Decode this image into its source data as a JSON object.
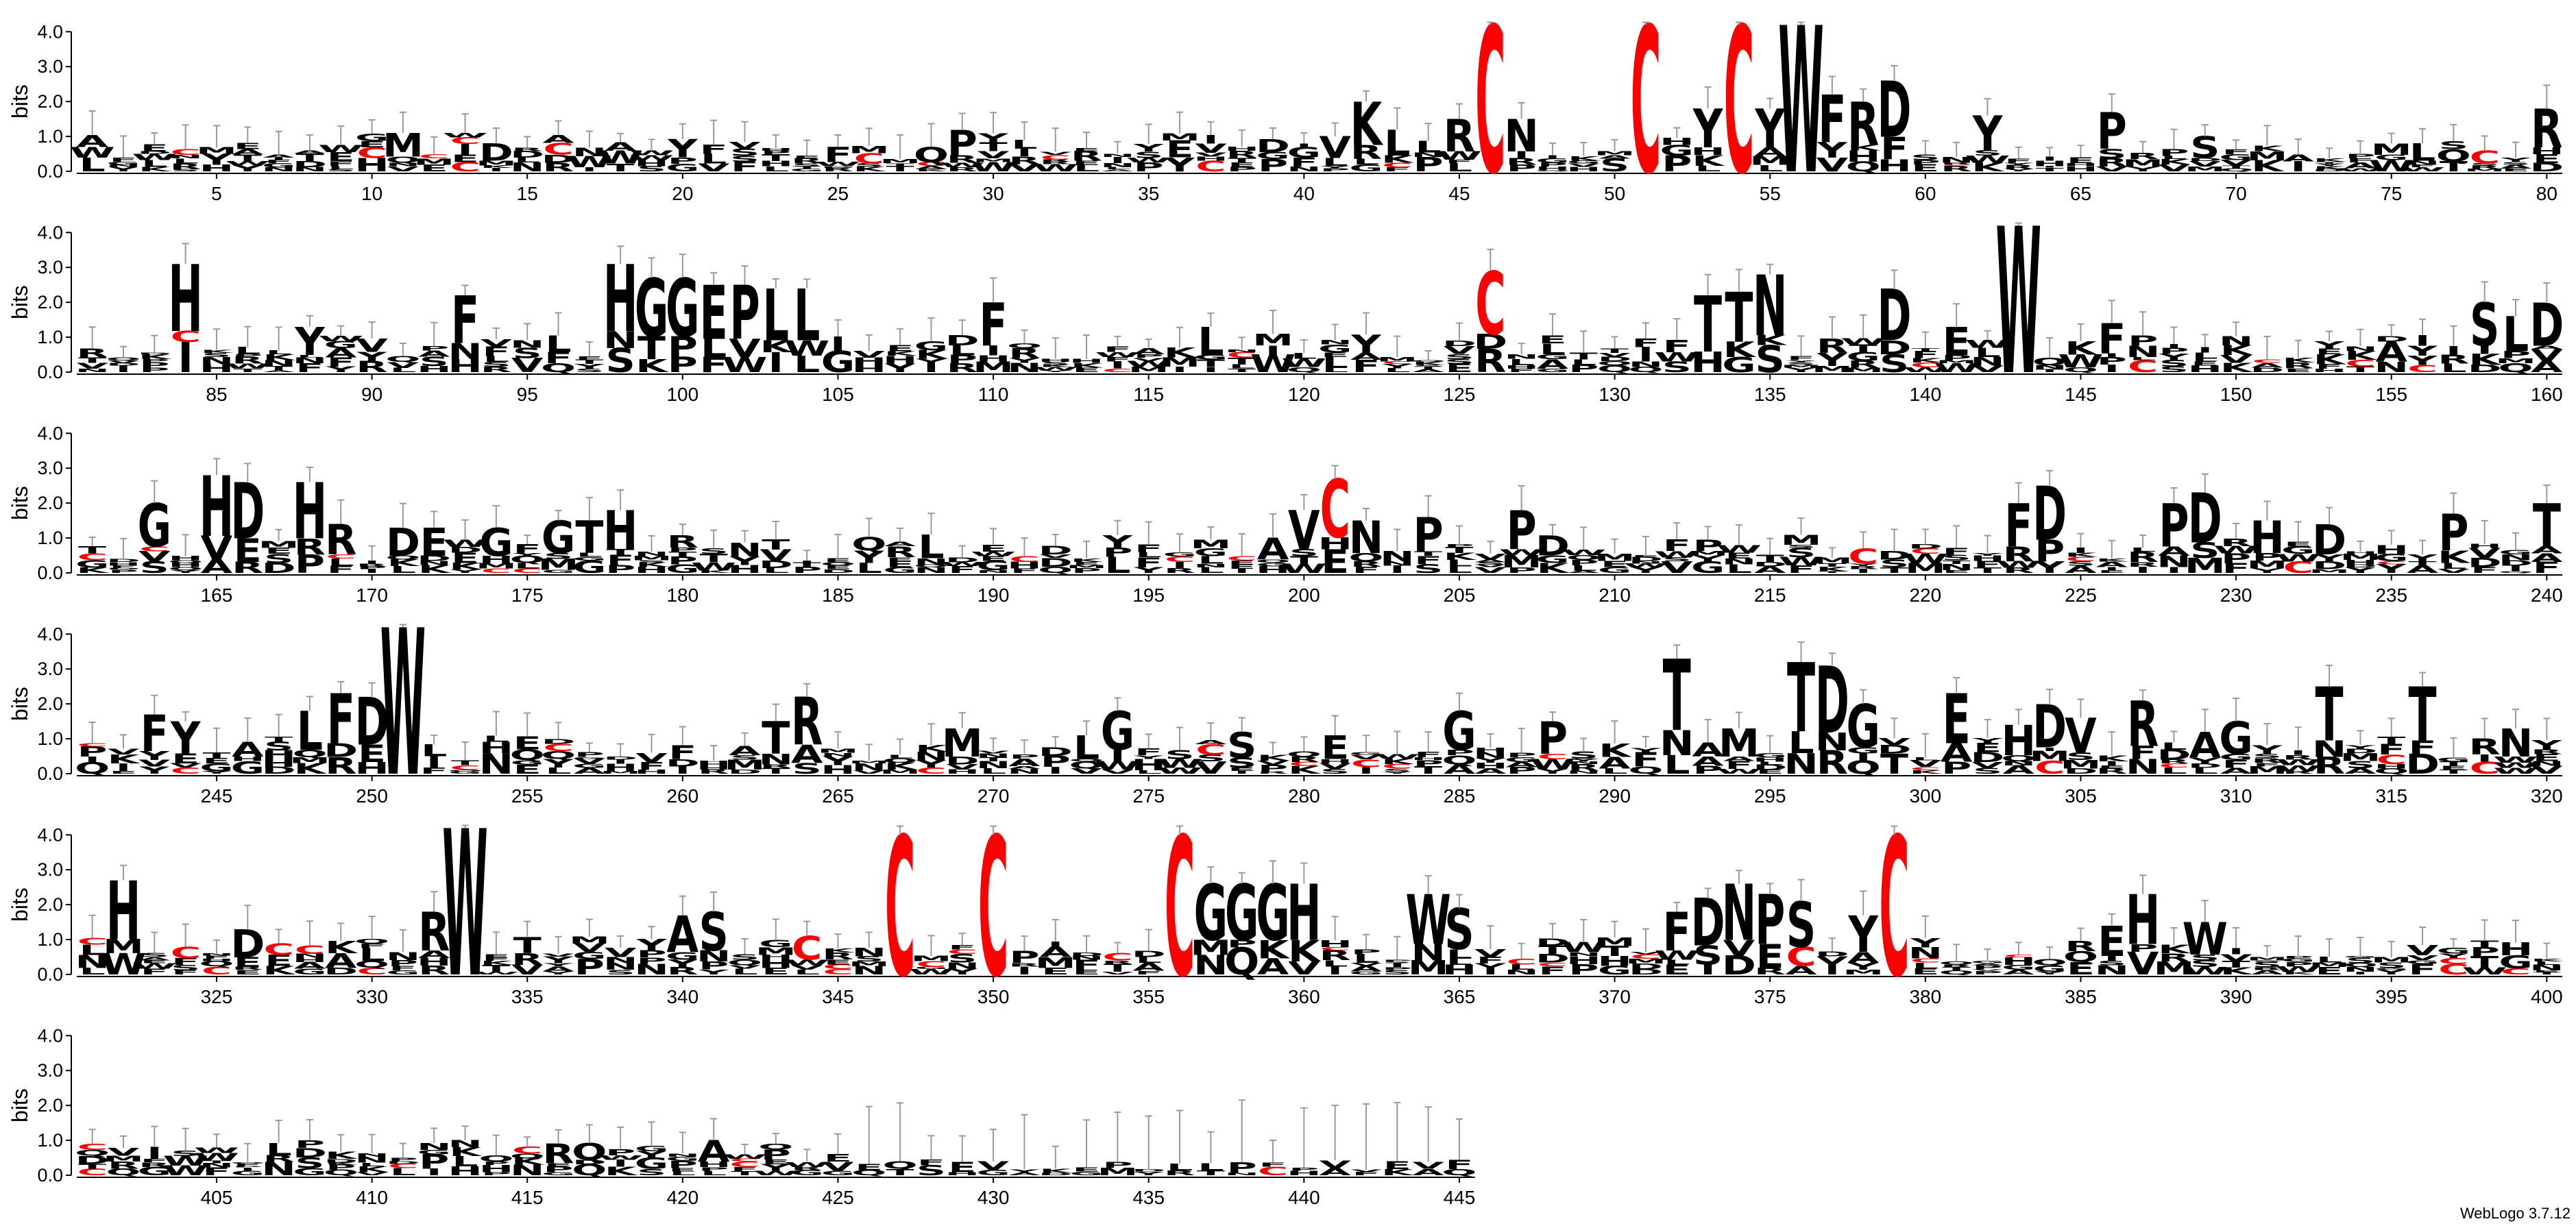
{
  "chart_data": {
    "type": "sequence-logo",
    "ylabel": "bits",
    "ylim": [
      0,
      4.32
    ],
    "yticks": [
      "0.0",
      "1.0",
      "2.0",
      "3.0",
      "4.0"
    ],
    "grid": false,
    "colors": {
      "default": "#000000",
      "highlight": "#ff0000",
      "errorbar": "#9a9a9a"
    },
    "rows": [
      {
        "start": 1,
        "end": 80,
        "xticks": [
          5,
          10,
          15,
          20,
          25,
          30,
          35,
          40,
          45,
          50,
          55,
          60,
          65,
          70,
          75,
          80
        ]
      },
      {
        "start": 81,
        "end": 160,
        "xticks": [
          85,
          90,
          95,
          100,
          105,
          110,
          115,
          120,
          125,
          130,
          135,
          140,
          145,
          150,
          155,
          160
        ]
      },
      {
        "start": 161,
        "end": 240,
        "xticks": [
          165,
          170,
          175,
          180,
          185,
          190,
          195,
          200,
          205,
          210,
          215,
          220,
          225,
          230,
          235,
          240
        ]
      },
      {
        "start": 241,
        "end": 320,
        "xticks": [
          245,
          250,
          255,
          260,
          265,
          270,
          275,
          280,
          285,
          290,
          295,
          300,
          305,
          310,
          315,
          320
        ]
      },
      {
        "start": 321,
        "end": 400,
        "xticks": [
          325,
          330,
          335,
          340,
          345,
          350,
          355,
          360,
          365,
          370,
          375,
          380,
          385,
          390,
          395,
          400
        ]
      },
      {
        "start": 401,
        "end": 445,
        "xticks": [
          405,
          410,
          415,
          420,
          425,
          430,
          435,
          440,
          445
        ]
      }
    ],
    "major_positions": [
      {
        "pos": 11,
        "letter": "M",
        "bits": 1.1
      },
      {
        "pos": 14,
        "letter": "D",
        "bits": 0.8
      },
      {
        "pos": 25,
        "letter": "F",
        "bits": 0.7
      },
      {
        "pos": 28,
        "letter": "Q",
        "bits": 0.7
      },
      {
        "pos": 29,
        "letter": "P",
        "bits": 1.2
      },
      {
        "pos": 41,
        "letter": "V",
        "bits": 1.0
      },
      {
        "pos": 42,
        "letter": "K",
        "bits": 2.0
      },
      {
        "pos": 43,
        "letter": "L",
        "bits": 1.2
      },
      {
        "pos": 45,
        "letter": "R",
        "bits": 1.5
      },
      {
        "pos": 46,
        "letter": "C",
        "bits": 4.2
      },
      {
        "pos": 47,
        "letter": "N",
        "bits": 1.5
      },
      {
        "pos": 51,
        "letter": "C",
        "bits": 4.2
      },
      {
        "pos": 53,
        "letter": "Y",
        "bits": 1.8
      },
      {
        "pos": 54,
        "letter": "C",
        "bits": 4.2
      },
      {
        "pos": 55,
        "letter": "Y",
        "bits": 1.8
      },
      {
        "pos": 56,
        "letter": "W",
        "bits": 4.2
      },
      {
        "pos": 57,
        "letter": "F",
        "bits": 2.2
      },
      {
        "pos": 58,
        "letter": "R",
        "bits": 2.0
      },
      {
        "pos": 59,
        "letter": "D",
        "bits": 2.6
      },
      {
        "pos": 62,
        "letter": "Y",
        "bits": 1.6
      },
      {
        "pos": 66,
        "letter": "P",
        "bits": 1.7
      },
      {
        "pos": 69,
        "letter": "S",
        "bits": 1.0
      },
      {
        "pos": 76,
        "letter": "L",
        "bits": 0.8
      },
      {
        "pos": 78,
        "letter": "C",
        "bits": 0.6
      },
      {
        "pos": 80,
        "letter": "R",
        "bits": 1.8
      },
      {
        "pos": 84,
        "letter": "H",
        "bits": 3.1
      },
      {
        "pos": 88,
        "letter": "Y",
        "bits": 1.3
      },
      {
        "pos": 93,
        "letter": "F",
        "bits": 2.2
      },
      {
        "pos": 98,
        "letter": "H",
        "bits": 3.1
      },
      {
        "pos": 99,
        "letter": "G",
        "bits": 2.7
      },
      {
        "pos": 100,
        "letter": "G",
        "bits": 2.7
      },
      {
        "pos": 101,
        "letter": "E",
        "bits": 2.5
      },
      {
        "pos": 102,
        "letter": "P",
        "bits": 2.5
      },
      {
        "pos": 103,
        "letter": "L",
        "bits": 2.4
      },
      {
        "pos": 104,
        "letter": "L",
        "bits": 2.4
      },
      {
        "pos": 110,
        "letter": "F",
        "bits": 2.0
      },
      {
        "pos": 117,
        "letter": "L",
        "bits": 1.3
      },
      {
        "pos": 126,
        "letter": "C",
        "bits": 2.9
      },
      {
        "pos": 133,
        "letter": "T",
        "bits": 2.2
      },
      {
        "pos": 134,
        "letter": "T",
        "bits": 2.3
      },
      {
        "pos": 135,
        "letter": "N",
        "bits": 2.8
      },
      {
        "pos": 139,
        "letter": "D",
        "bits": 2.4
      },
      {
        "pos": 141,
        "letter": "E",
        "bits": 1.3
      },
      {
        "pos": 143,
        "letter": "W",
        "bits": 4.2
      },
      {
        "pos": 146,
        "letter": "F",
        "bits": 1.4
      },
      {
        "pos": 158,
        "letter": "S",
        "bits": 2.0
      },
      {
        "pos": 159,
        "letter": "L",
        "bits": 1.6
      },
      {
        "pos": 160,
        "letter": "D",
        "bits": 2.0
      },
      {
        "pos": 163,
        "letter": "G",
        "bits": 2.0
      },
      {
        "pos": 165,
        "letter": "H",
        "bits": 2.8
      },
      {
        "pos": 166,
        "letter": "D",
        "bits": 2.6
      },
      {
        "pos": 168,
        "letter": "H",
        "bits": 2.6
      },
      {
        "pos": 169,
        "letter": "R",
        "bits": 1.4
      },
      {
        "pos": 171,
        "letter": "D",
        "bits": 1.3
      },
      {
        "pos": 172,
        "letter": "E",
        "bits": 1.3
      },
      {
        "pos": 174,
        "letter": "G",
        "bits": 1.3
      },
      {
        "pos": 176,
        "letter": "G",
        "bits": 1.5
      },
      {
        "pos": 177,
        "letter": "T",
        "bits": 1.5
      },
      {
        "pos": 178,
        "letter": "H",
        "bits": 1.8
      },
      {
        "pos": 188,
        "letter": "L",
        "bits": 1.1
      },
      {
        "pos": 199,
        "letter": "A",
        "bits": 1.0
      },
      {
        "pos": 200,
        "letter": "V",
        "bits": 1.8
      },
      {
        "pos": 201,
        "letter": "C",
        "bits": 2.7
      },
      {
        "pos": 202,
        "letter": "N",
        "bits": 1.5
      },
      {
        "pos": 204,
        "letter": "P",
        "bits": 1.6
      },
      {
        "pos": 207,
        "letter": "P",
        "bits": 1.8
      },
      {
        "pos": 218,
        "letter": "C",
        "bits": 0.7
      },
      {
        "pos": 223,
        "letter": "F",
        "bits": 2.0
      },
      {
        "pos": 224,
        "letter": "D",
        "bits": 2.5
      },
      {
        "pos": 228,
        "letter": "P",
        "bits": 2.0
      },
      {
        "pos": 229,
        "letter": "D",
        "bits": 2.3
      },
      {
        "pos": 231,
        "letter": "H",
        "bits": 1.5
      },
      {
        "pos": 233,
        "letter": "D",
        "bits": 1.4
      },
      {
        "pos": 237,
        "letter": "P",
        "bits": 1.7
      },
      {
        "pos": 240,
        "letter": "T",
        "bits": 2.0
      },
      {
        "pos": 243,
        "letter": "F",
        "bits": 1.7
      },
      {
        "pos": 244,
        "letter": "Y",
        "bits": 1.5
      },
      {
        "pos": 248,
        "letter": "L",
        "bits": 1.8
      },
      {
        "pos": 249,
        "letter": "F",
        "bits": 2.3
      },
      {
        "pos": 250,
        "letter": "D",
        "bits": 2.2
      },
      {
        "pos": 251,
        "letter": "W",
        "bits": 4.2
      },
      {
        "pos": 263,
        "letter": "T",
        "bits": 1.5
      },
      {
        "pos": 264,
        "letter": "R",
        "bits": 2.2
      },
      {
        "pos": 269,
        "letter": "M",
        "bits": 1.3
      },
      {
        "pos": 273,
        "letter": "L",
        "bits": 1.1
      },
      {
        "pos": 274,
        "letter": "G",
        "bits": 1.8
      },
      {
        "pos": 278,
        "letter": "S",
        "bits": 1.2
      },
      {
        "pos": 281,
        "letter": "E",
        "bits": 1.1
      },
      {
        "pos": 285,
        "letter": "G",
        "bits": 1.8
      },
      {
        "pos": 288,
        "letter": "P",
        "bits": 1.5
      },
      {
        "pos": 292,
        "letter": "T",
        "bits": 3.3
      },
      {
        "pos": 294,
        "letter": "M",
        "bits": 1.3
      },
      {
        "pos": 296,
        "letter": "T",
        "bits": 3.2
      },
      {
        "pos": 297,
        "letter": "D",
        "bits": 3.1
      },
      {
        "pos": 298,
        "letter": "G",
        "bits": 2.0
      },
      {
        "pos": 301,
        "letter": "E",
        "bits": 2.3
      },
      {
        "pos": 303,
        "letter": "H",
        "bits": 1.4
      },
      {
        "pos": 304,
        "letter": "D",
        "bits": 2.0
      },
      {
        "pos": 305,
        "letter": "V",
        "bits": 1.6
      },
      {
        "pos": 307,
        "letter": "R",
        "bits": 2.1
      },
      {
        "pos": 309,
        "letter": "A",
        "bits": 1.2
      },
      {
        "pos": 310,
        "letter": "G",
        "bits": 1.5
      },
      {
        "pos": 313,
        "letter": "T",
        "bits": 2.5
      },
      {
        "pos": 316,
        "letter": "T",
        "bits": 2.5
      },
      {
        "pos": 319,
        "letter": "N",
        "bits": 1.3
      },
      {
        "pos": 322,
        "letter": "H",
        "bits": 2.7
      },
      {
        "pos": 326,
        "letter": "D",
        "bits": 1.3
      },
      {
        "pos": 332,
        "letter": "R",
        "bits": 1.8
      },
      {
        "pos": 333,
        "letter": "W",
        "bits": 4.2
      },
      {
        "pos": 340,
        "letter": "A",
        "bits": 1.7
      },
      {
        "pos": 341,
        "letter": "S",
        "bits": 1.8
      },
      {
        "pos": 344,
        "letter": "C",
        "bits": 1.1
      },
      {
        "pos": 347,
        "letter": "C",
        "bits": 4.0
      },
      {
        "pos": 350,
        "letter": "C",
        "bits": 4.0
      },
      {
        "pos": 356,
        "letter": "C",
        "bits": 4.0
      },
      {
        "pos": 357,
        "letter": "G",
        "bits": 2.6
      },
      {
        "pos": 358,
        "letter": "G",
        "bits": 2.6
      },
      {
        "pos": 359,
        "letter": "G",
        "bits": 2.6
      },
      {
        "pos": 360,
        "letter": "H",
        "bits": 2.6
      },
      {
        "pos": 364,
        "letter": "W",
        "bits": 2.3
      },
      {
        "pos": 365,
        "letter": "S",
        "bits": 1.9
      },
      {
        "pos": 372,
        "letter": "F",
        "bits": 1.8
      },
      {
        "pos": 373,
        "letter": "D",
        "bits": 2.2
      },
      {
        "pos": 374,
        "letter": "N",
        "bits": 2.6
      },
      {
        "pos": 375,
        "letter": "P",
        "bits": 2.3
      },
      {
        "pos": 376,
        "letter": "S",
        "bits": 2.1
      },
      {
        "pos": 378,
        "letter": "Y",
        "bits": 1.7
      },
      {
        "pos": 379,
        "letter": "C",
        "bits": 4.0
      },
      {
        "pos": 386,
        "letter": "E",
        "bits": 1.4
      },
      {
        "pos": 387,
        "letter": "H",
        "bits": 2.3
      },
      {
        "pos": 389,
        "letter": "W",
        "bits": 1.5
      },
      {
        "pos": 416,
        "letter": "R",
        "bits": 0.9
      },
      {
        "pos": 421,
        "letter": "A",
        "bits": 1.0
      }
    ]
  },
  "footer": {
    "credit": "WebLogo 3.7.12"
  }
}
